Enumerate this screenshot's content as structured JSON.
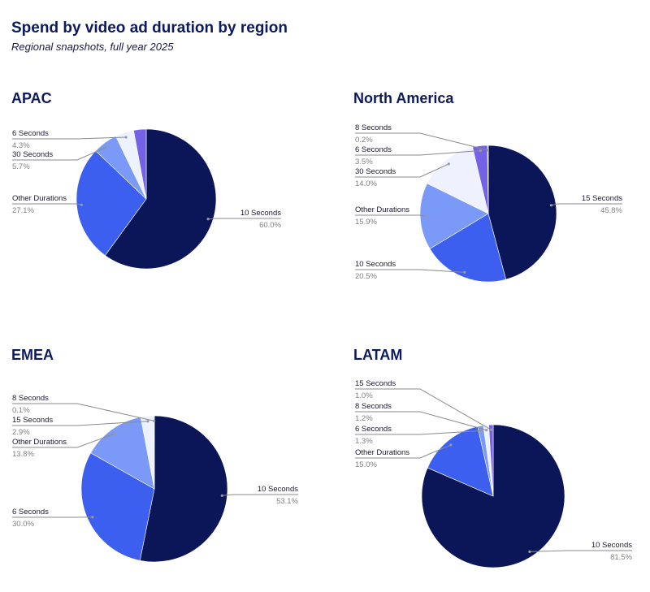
{
  "title": "Spend by video ad duration by region",
  "subtitle": "Regional snapshots, full year 2025",
  "colors": {
    "10 Seconds": "#0a1657",
    "15 Seconds": "#0a1657",
    "Other Durations": "#3d5ff0",
    "6 Seconds": "#3d5ff0",
    "30 Seconds": "#7b9af7",
    "8 Seconds": "#7b7ee8"
  },
  "chart_data": [
    {
      "type": "pie",
      "title": "APAC",
      "slices": [
        {
          "label": "10 Seconds",
          "value": 60.0,
          "pct": "60.0%",
          "color": "#0a1657"
        },
        {
          "label": "Other Durations",
          "value": 27.1,
          "pct": "27.1%",
          "color": "#3d5ff0"
        },
        {
          "label": "30 Seconds",
          "value": 5.7,
          "pct": "5.7%",
          "color": "#7b9af7"
        },
        {
          "label": "6 Seconds",
          "value": 4.3,
          "pct": "4.3%",
          "color": "#eef2ff"
        },
        {
          "label": "",
          "value": 2.9,
          "pct": "",
          "color": "#7462e6"
        }
      ]
    },
    {
      "type": "pie",
      "title": "North America",
      "slices": [
        {
          "label": "15 Seconds",
          "value": 45.8,
          "pct": "45.8%",
          "color": "#0a1657"
        },
        {
          "label": "10 Seconds",
          "value": 20.5,
          "pct": "20.5%",
          "color": "#3d5ff0"
        },
        {
          "label": "Other Durations",
          "value": 15.9,
          "pct": "15.9%",
          "color": "#7b9af7"
        },
        {
          "label": "30 Seconds",
          "value": 14.0,
          "pct": "14.0%",
          "color": "#eef2ff"
        },
        {
          "label": "6 Seconds",
          "value": 3.5,
          "pct": "3.5%",
          "color": "#7462e6"
        },
        {
          "label": "8 Seconds",
          "value": 0.2,
          "pct": "0.2%",
          "color": "#9aa2c4"
        }
      ]
    },
    {
      "type": "pie",
      "title": "EMEA",
      "slices": [
        {
          "label": "10 Seconds",
          "value": 53.1,
          "pct": "53.1%",
          "color": "#0a1657"
        },
        {
          "label": "6 Seconds",
          "value": 30.0,
          "pct": "30.0%",
          "color": "#3d5ff0"
        },
        {
          "label": "Other Durations",
          "value": 13.8,
          "pct": "13.8%",
          "color": "#7b9af7"
        },
        {
          "label": "15 Seconds",
          "value": 2.9,
          "pct": "2.9%",
          "color": "#eef2ff"
        },
        {
          "label": "8 Seconds",
          "value": 0.1,
          "pct": "0.1%",
          "color": "#9aa2c4"
        }
      ]
    },
    {
      "type": "pie",
      "title": "LATAM",
      "slices": [
        {
          "label": "10 Seconds",
          "value": 81.5,
          "pct": "81.5%",
          "color": "#0a1657"
        },
        {
          "label": "Other Durations",
          "value": 15.0,
          "pct": "15.0%",
          "color": "#3d5ff0"
        },
        {
          "label": "6 Seconds",
          "value": 1.3,
          "pct": "1.3%",
          "color": "#7b9af7"
        },
        {
          "label": "8 Seconds",
          "value": 1.2,
          "pct": "1.2%",
          "color": "#eef2ff"
        },
        {
          "label": "15 Seconds",
          "value": 1.0,
          "pct": "1.0%",
          "color": "#7462e6"
        }
      ]
    }
  ]
}
